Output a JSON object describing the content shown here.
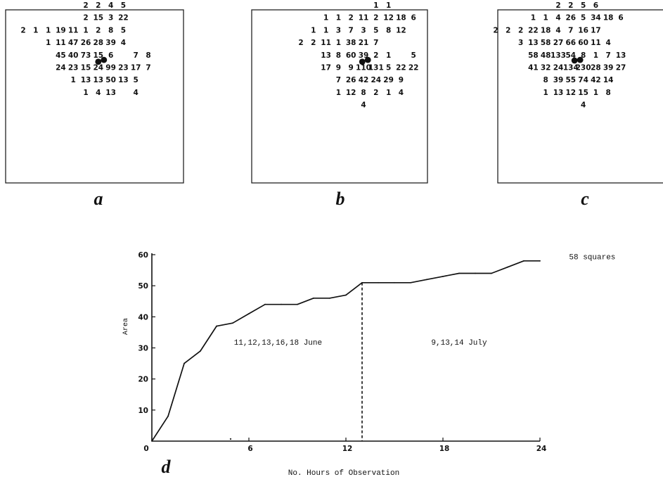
{
  "panels": [
    {
      "label": "a",
      "rows": [
        {
          "cols": [
            5,
            6,
            7,
            8
          ],
          "vals": [
            "2",
            "2",
            "4",
            "5"
          ]
        },
        {
          "cols": [
            5,
            6,
            7,
            8
          ],
          "vals": [
            "2",
            "15",
            "3",
            "22"
          ]
        },
        {
          "cols": [
            0,
            1,
            2,
            3,
            4,
            5,
            6,
            7,
            8
          ],
          "vals": [
            "2",
            "1",
            "1",
            "19",
            "11",
            "1",
            "2",
            "8",
            "5"
          ]
        },
        {
          "cols": [
            2,
            3,
            4,
            5,
            6,
            7,
            8
          ],
          "vals": [
            "1",
            "11",
            "47",
            "26",
            "28",
            "39",
            "4"
          ]
        },
        {
          "cols": [
            3,
            4,
            5,
            6,
            7,
            9,
            10
          ],
          "vals": [
            "45",
            "40",
            "73",
            "15",
            "6",
            "7",
            "8"
          ]
        },
        {
          "cols": [
            3,
            4,
            5,
            6,
            7,
            8,
            9,
            10
          ],
          "vals": [
            "24",
            "23",
            "15",
            "24",
            "99",
            "23",
            "17",
            "7"
          ]
        },
        {
          "cols": [
            4,
            5,
            6,
            7,
            8,
            9
          ],
          "vals": [
            "1",
            "13",
            "13",
            "50",
            "13",
            "5"
          ]
        },
        {
          "cols": [
            5,
            6,
            7,
            9
          ],
          "vals": [
            "1",
            "4",
            "13",
            "4"
          ]
        }
      ],
      "dots": [
        [
          6.0,
          4.45
        ],
        [
          6.45,
          4.3
        ]
      ]
    },
    {
      "label": "b",
      "rows": [
        {
          "cols": [
            6,
            7
          ],
          "vals": [
            "1",
            "1"
          ]
        },
        {
          "cols": [
            2,
            3,
            4,
            5,
            6,
            7,
            8,
            9
          ],
          "vals": [
            "1",
            "1",
            "2",
            "11",
            "2",
            "12",
            "18",
            "6"
          ]
        },
        {
          "cols": [
            1,
            2,
            3,
            4,
            5,
            6,
            7,
            8
          ],
          "vals": [
            "1",
            "1",
            "3",
            "7",
            "3",
            "5",
            "8",
            "12"
          ]
        },
        {
          "cols": [
            0,
            1,
            2,
            3,
            4,
            5,
            6
          ],
          "vals": [
            "2",
            "2",
            "11",
            "1",
            "38",
            "21",
            "7"
          ]
        },
        {
          "cols": [
            2,
            3,
            4,
            5,
            6,
            7,
            9
          ],
          "vals": [
            "13",
            "8",
            "60",
            "39",
            "2",
            "1",
            "5"
          ]
        },
        {
          "cols": [
            2,
            3,
            4,
            5,
            6,
            7,
            8,
            9,
            10
          ],
          "vals": [
            "17",
            "9",
            "9",
            "110",
            "131",
            "5",
            "22",
            "22",
            ""
          ]
        },
        {
          "cols": [
            3,
            4,
            5,
            6,
            7,
            8
          ],
          "vals": [
            "7",
            "26",
            "42",
            "24",
            "29",
            "9"
          ]
        },
        {
          "cols": [
            3,
            4,
            5,
            6,
            7,
            8
          ],
          "vals": [
            "1",
            "12",
            "8",
            "2",
            "1",
            "4"
          ]
        },
        {
          "cols": [
            5
          ],
          "vals": [
            "4"
          ]
        }
      ],
      "dots": [
        [
          4.9,
          4.45
        ],
        [
          5.35,
          4.3
        ]
      ]
    },
    {
      "label": "c",
      "rows": [
        {
          "cols": [
            5,
            6,
            7,
            8
          ],
          "vals": [
            "2",
            "2",
            "5",
            "6"
          ]
        },
        {
          "cols": [
            3,
            4,
            5,
            6,
            7,
            8,
            9,
            10
          ],
          "vals": [
            "1",
            "1",
            "4",
            "26",
            "5",
            "34",
            "18",
            "6"
          ]
        },
        {
          "cols": [
            0,
            1,
            2,
            3,
            4,
            5,
            6,
            7,
            8
          ],
          "vals": [
            "2",
            "2",
            "2",
            "22",
            "18",
            "4",
            "7",
            "16",
            "17"
          ]
        },
        {
          "cols": [
            2,
            3,
            4,
            5,
            6,
            7,
            8,
            9
          ],
          "vals": [
            "3",
            "13",
            "58",
            "27",
            "66",
            "60",
            "11",
            "4"
          ]
        },
        {
          "cols": [
            3,
            4,
            5,
            6,
            7,
            8,
            9,
            10
          ],
          "vals": [
            "58",
            "48",
            "133",
            "54",
            "8",
            "1",
            "7",
            "13"
          ]
        },
        {
          "cols": [
            3,
            4,
            5,
            6,
            7,
            8,
            9,
            10
          ],
          "vals": [
            "41",
            "32",
            "24",
            "134",
            "230",
            "28",
            "39",
            "27"
          ]
        },
        {
          "cols": [
            4,
            5,
            6,
            7,
            8,
            9
          ],
          "vals": [
            "8",
            "39",
            "55",
            "74",
            "42",
            "14"
          ]
        },
        {
          "cols": [
            4,
            5,
            6,
            7,
            8,
            9
          ],
          "vals": [
            "1",
            "13",
            "12",
            "15",
            "1",
            "8"
          ]
        },
        {
          "cols": [
            7
          ],
          "vals": [
            "4"
          ]
        }
      ],
      "dots": [
        [
          6.3,
          4.35
        ],
        [
          6.75,
          4.3
        ]
      ]
    }
  ],
  "chart_data": {
    "type": "line",
    "panel_label": "d",
    "title": "",
    "xlabel": "No. Hours of Observation",
    "ylabel": "Area",
    "xlim": [
      0,
      24
    ],
    "ylim": [
      0,
      60
    ],
    "xticks": [
      0,
      6,
      12,
      18,
      24
    ],
    "yticks": [
      10,
      20,
      30,
      40,
      50,
      60
    ],
    "grid": false,
    "series": [
      {
        "name": "",
        "x": [
          0,
          1,
          2,
          3,
          4,
          5,
          6,
          7,
          8,
          9,
          10,
          11,
          12,
          13,
          14,
          15,
          16,
          17,
          18,
          19,
          20,
          21,
          22,
          23,
          24
        ],
        "y": [
          0,
          8,
          25,
          29,
          37,
          38,
          41,
          44,
          44,
          44,
          46,
          46,
          47,
          51,
          51,
          51,
          51,
          52,
          53,
          54,
          54,
          54,
          56,
          58,
          58
        ]
      }
    ],
    "divider_x": 13,
    "annotations": [
      {
        "text": "11,12,13,16,18 June",
        "x": 7.8,
        "y": 31
      },
      {
        "text": "9,13,14 July",
        "x": 19,
        "y": 31
      },
      {
        "text": "58 squares",
        "x": 25.8,
        "y": 58.5
      }
    ]
  }
}
